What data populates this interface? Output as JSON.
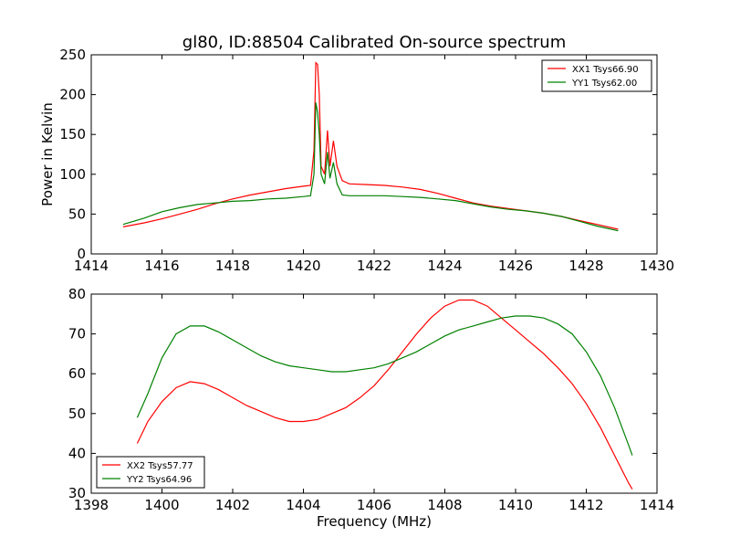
{
  "figure": {
    "title": "gl80, ID:88504 Calibrated On-source spectrum"
  },
  "chart_data": [
    {
      "type": "line",
      "title": "gl80, ID:88504 Calibrated On-source spectrum",
      "xlabel": "",
      "ylabel": "Power in Kelvin",
      "xlim": [
        1414,
        1430
      ],
      "ylim": [
        0,
        250
      ],
      "xticks": [
        1414,
        1416,
        1418,
        1420,
        1422,
        1424,
        1426,
        1428,
        1430
      ],
      "yticks": [
        0,
        50,
        100,
        150,
        200,
        250
      ],
      "grid": false,
      "legend_position": "top-right",
      "series": [
        {
          "name": "XX1 Tsys66.90",
          "color": "#ff0000",
          "points": [
            [
              1414.9,
              34
            ],
            [
              1415.5,
              39
            ],
            [
              1416.0,
              44
            ],
            [
              1416.5,
              50
            ],
            [
              1417.0,
              56
            ],
            [
              1417.5,
              63
            ],
            [
              1418.0,
              69
            ],
            [
              1418.5,
              74
            ],
            [
              1419.0,
              78
            ],
            [
              1419.5,
              82
            ],
            [
              1420.0,
              85
            ],
            [
              1420.2,
              86
            ],
            [
              1420.3,
              130
            ],
            [
              1420.35,
              240
            ],
            [
              1420.4,
              238
            ],
            [
              1420.45,
              200
            ],
            [
              1420.5,
              110
            ],
            [
              1420.6,
              100
            ],
            [
              1420.68,
              155
            ],
            [
              1420.75,
              110
            ],
            [
              1420.85,
              142
            ],
            [
              1420.95,
              110
            ],
            [
              1421.1,
              92
            ],
            [
              1421.3,
              88
            ],
            [
              1421.8,
              87
            ],
            [
              1422.3,
              86
            ],
            [
              1422.8,
              84
            ],
            [
              1423.3,
              81
            ],
            [
              1423.8,
              76
            ],
            [
              1424.3,
              70
            ],
            [
              1424.8,
              64
            ],
            [
              1425.3,
              60
            ],
            [
              1425.8,
              57
            ],
            [
              1426.3,
              54
            ],
            [
              1426.8,
              51
            ],
            [
              1427.3,
              47
            ],
            [
              1427.8,
              42
            ],
            [
              1428.3,
              37
            ],
            [
              1428.9,
              31
            ]
          ]
        },
        {
          "name": "YY1 Tsys62.00",
          "color": "#008000",
          "points": [
            [
              1414.9,
              37
            ],
            [
              1415.5,
              45
            ],
            [
              1416.0,
              53
            ],
            [
              1416.5,
              58
            ],
            [
              1417.0,
              62
            ],
            [
              1417.5,
              64
            ],
            [
              1418.0,
              66
            ],
            [
              1418.5,
              67
            ],
            [
              1419.0,
              69
            ],
            [
              1419.5,
              70
            ],
            [
              1420.0,
              72
            ],
            [
              1420.2,
              73
            ],
            [
              1420.3,
              100
            ],
            [
              1420.35,
              190
            ],
            [
              1420.4,
              178
            ],
            [
              1420.45,
              150
            ],
            [
              1420.5,
              100
            ],
            [
              1420.6,
              88
            ],
            [
              1420.68,
              128
            ],
            [
              1420.75,
              95
            ],
            [
              1420.85,
              115
            ],
            [
              1420.95,
              88
            ],
            [
              1421.1,
              74
            ],
            [
              1421.3,
              73
            ],
            [
              1421.8,
              73
            ],
            [
              1422.3,
              73
            ],
            [
              1422.8,
              72
            ],
            [
              1423.3,
              71
            ],
            [
              1423.8,
              69
            ],
            [
              1424.3,
              67
            ],
            [
              1424.8,
              63
            ],
            [
              1425.3,
              59
            ],
            [
              1425.8,
              56
            ],
            [
              1426.3,
              54
            ],
            [
              1426.8,
              51
            ],
            [
              1427.3,
              47
            ],
            [
              1427.8,
              41
            ],
            [
              1428.3,
              35
            ],
            [
              1428.9,
              29
            ]
          ]
        }
      ]
    },
    {
      "type": "line",
      "title": "",
      "xlabel": "Frequency (MHz)",
      "ylabel": "",
      "xlim": [
        1398,
        1414
      ],
      "ylim": [
        30,
        80
      ],
      "xticks": [
        1398,
        1400,
        1402,
        1404,
        1406,
        1408,
        1410,
        1412,
        1414
      ],
      "yticks": [
        30,
        40,
        50,
        60,
        70,
        80
      ],
      "grid": false,
      "legend_position": "bottom-left",
      "series": [
        {
          "name": "XX2 Tsys57.77",
          "color": "#ff0000",
          "points": [
            [
              1399.3,
              42.5
            ],
            [
              1399.6,
              48
            ],
            [
              1400.0,
              53
            ],
            [
              1400.4,
              56.5
            ],
            [
              1400.8,
              58
            ],
            [
              1401.2,
              57.5
            ],
            [
              1401.6,
              56
            ],
            [
              1402.0,
              54
            ],
            [
              1402.4,
              52
            ],
            [
              1402.8,
              50.5
            ],
            [
              1403.2,
              49
            ],
            [
              1403.6,
              48
            ],
            [
              1404.0,
              48
            ],
            [
              1404.4,
              48.5
            ],
            [
              1404.8,
              50
            ],
            [
              1405.2,
              51.5
            ],
            [
              1405.6,
              54
            ],
            [
              1406.0,
              57
            ],
            [
              1406.4,
              61
            ],
            [
              1406.8,
              65.5
            ],
            [
              1407.2,
              70
            ],
            [
              1407.6,
              74
            ],
            [
              1408.0,
              77
            ],
            [
              1408.4,
              78.5
            ],
            [
              1408.8,
              78.5
            ],
            [
              1409.2,
              77
            ],
            [
              1409.6,
              74
            ],
            [
              1410.0,
              71
            ],
            [
              1410.4,
              68
            ],
            [
              1410.8,
              65
            ],
            [
              1411.2,
              61.5
            ],
            [
              1411.6,
              57.5
            ],
            [
              1412.0,
              52.5
            ],
            [
              1412.4,
              46.5
            ],
            [
              1412.8,
              39.5
            ],
            [
              1413.2,
              32.5
            ],
            [
              1413.3,
              31
            ]
          ]
        },
        {
          "name": "YY2 Tsys64.96",
          "color": "#008000",
          "points": [
            [
              1399.3,
              49
            ],
            [
              1399.6,
              55
            ],
            [
              1400.0,
              64
            ],
            [
              1400.4,
              70
            ],
            [
              1400.8,
              72
            ],
            [
              1401.2,
              72
            ],
            [
              1401.6,
              70.5
            ],
            [
              1402.0,
              68.5
            ],
            [
              1402.4,
              66.5
            ],
            [
              1402.8,
              64.5
            ],
            [
              1403.2,
              63
            ],
            [
              1403.6,
              62
            ],
            [
              1404.0,
              61.5
            ],
            [
              1404.4,
              61
            ],
            [
              1404.8,
              60.5
            ],
            [
              1405.2,
              60.5
            ],
            [
              1405.6,
              61
            ],
            [
              1406.0,
              61.5
            ],
            [
              1406.4,
              62.5
            ],
            [
              1406.8,
              64
            ],
            [
              1407.2,
              65.5
            ],
            [
              1407.6,
              67.5
            ],
            [
              1408.0,
              69.5
            ],
            [
              1408.4,
              71
            ],
            [
              1408.8,
              72
            ],
            [
              1409.2,
              73
            ],
            [
              1409.6,
              74
            ],
            [
              1410.0,
              74.5
            ],
            [
              1410.4,
              74.5
            ],
            [
              1410.8,
              74
            ],
            [
              1411.2,
              72.5
            ],
            [
              1411.6,
              70
            ],
            [
              1412.0,
              65.5
            ],
            [
              1412.4,
              59.5
            ],
            [
              1412.8,
              51.5
            ],
            [
              1413.2,
              42
            ],
            [
              1413.3,
              39.5
            ]
          ]
        }
      ]
    }
  ]
}
